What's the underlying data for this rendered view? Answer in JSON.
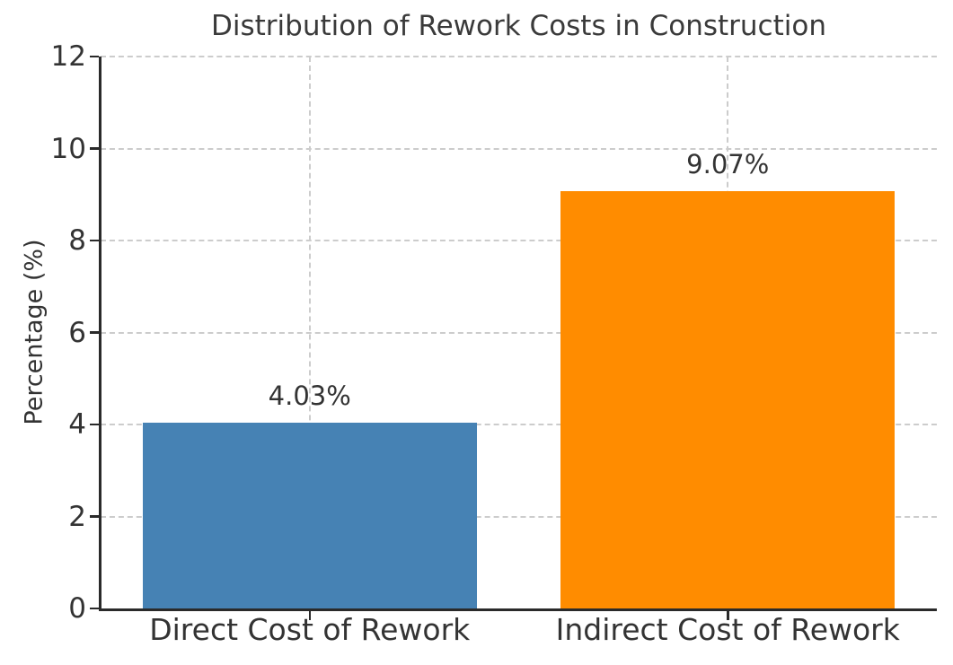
{
  "chart_data": {
    "type": "bar",
    "title": "Distribution of Rework Costs in Construction",
    "xlabel": "",
    "ylabel": "Percentage (%)",
    "categories": [
      "Direct Cost of Rework",
      "Indirect Cost of Rework"
    ],
    "values": [
      4.03,
      9.07
    ],
    "value_labels": [
      "4.03%",
      "9.07%"
    ],
    "bar_colors": [
      "#4682b4",
      "#ff8c00"
    ],
    "ylim": [
      0,
      12
    ],
    "yticks": [
      0,
      2,
      4,
      6,
      8,
      10,
      12
    ],
    "ytick_labels": [
      "0",
      "2",
      "4",
      "6",
      "8",
      "10",
      "12"
    ],
    "grid_style": "dashed",
    "grid_color": "#cccccc",
    "axis_color": "#2a2a2a",
    "text_color": "#333333",
    "background_color": "#ffffff",
    "legend": "none",
    "bar_width_fraction": 0.8
  }
}
